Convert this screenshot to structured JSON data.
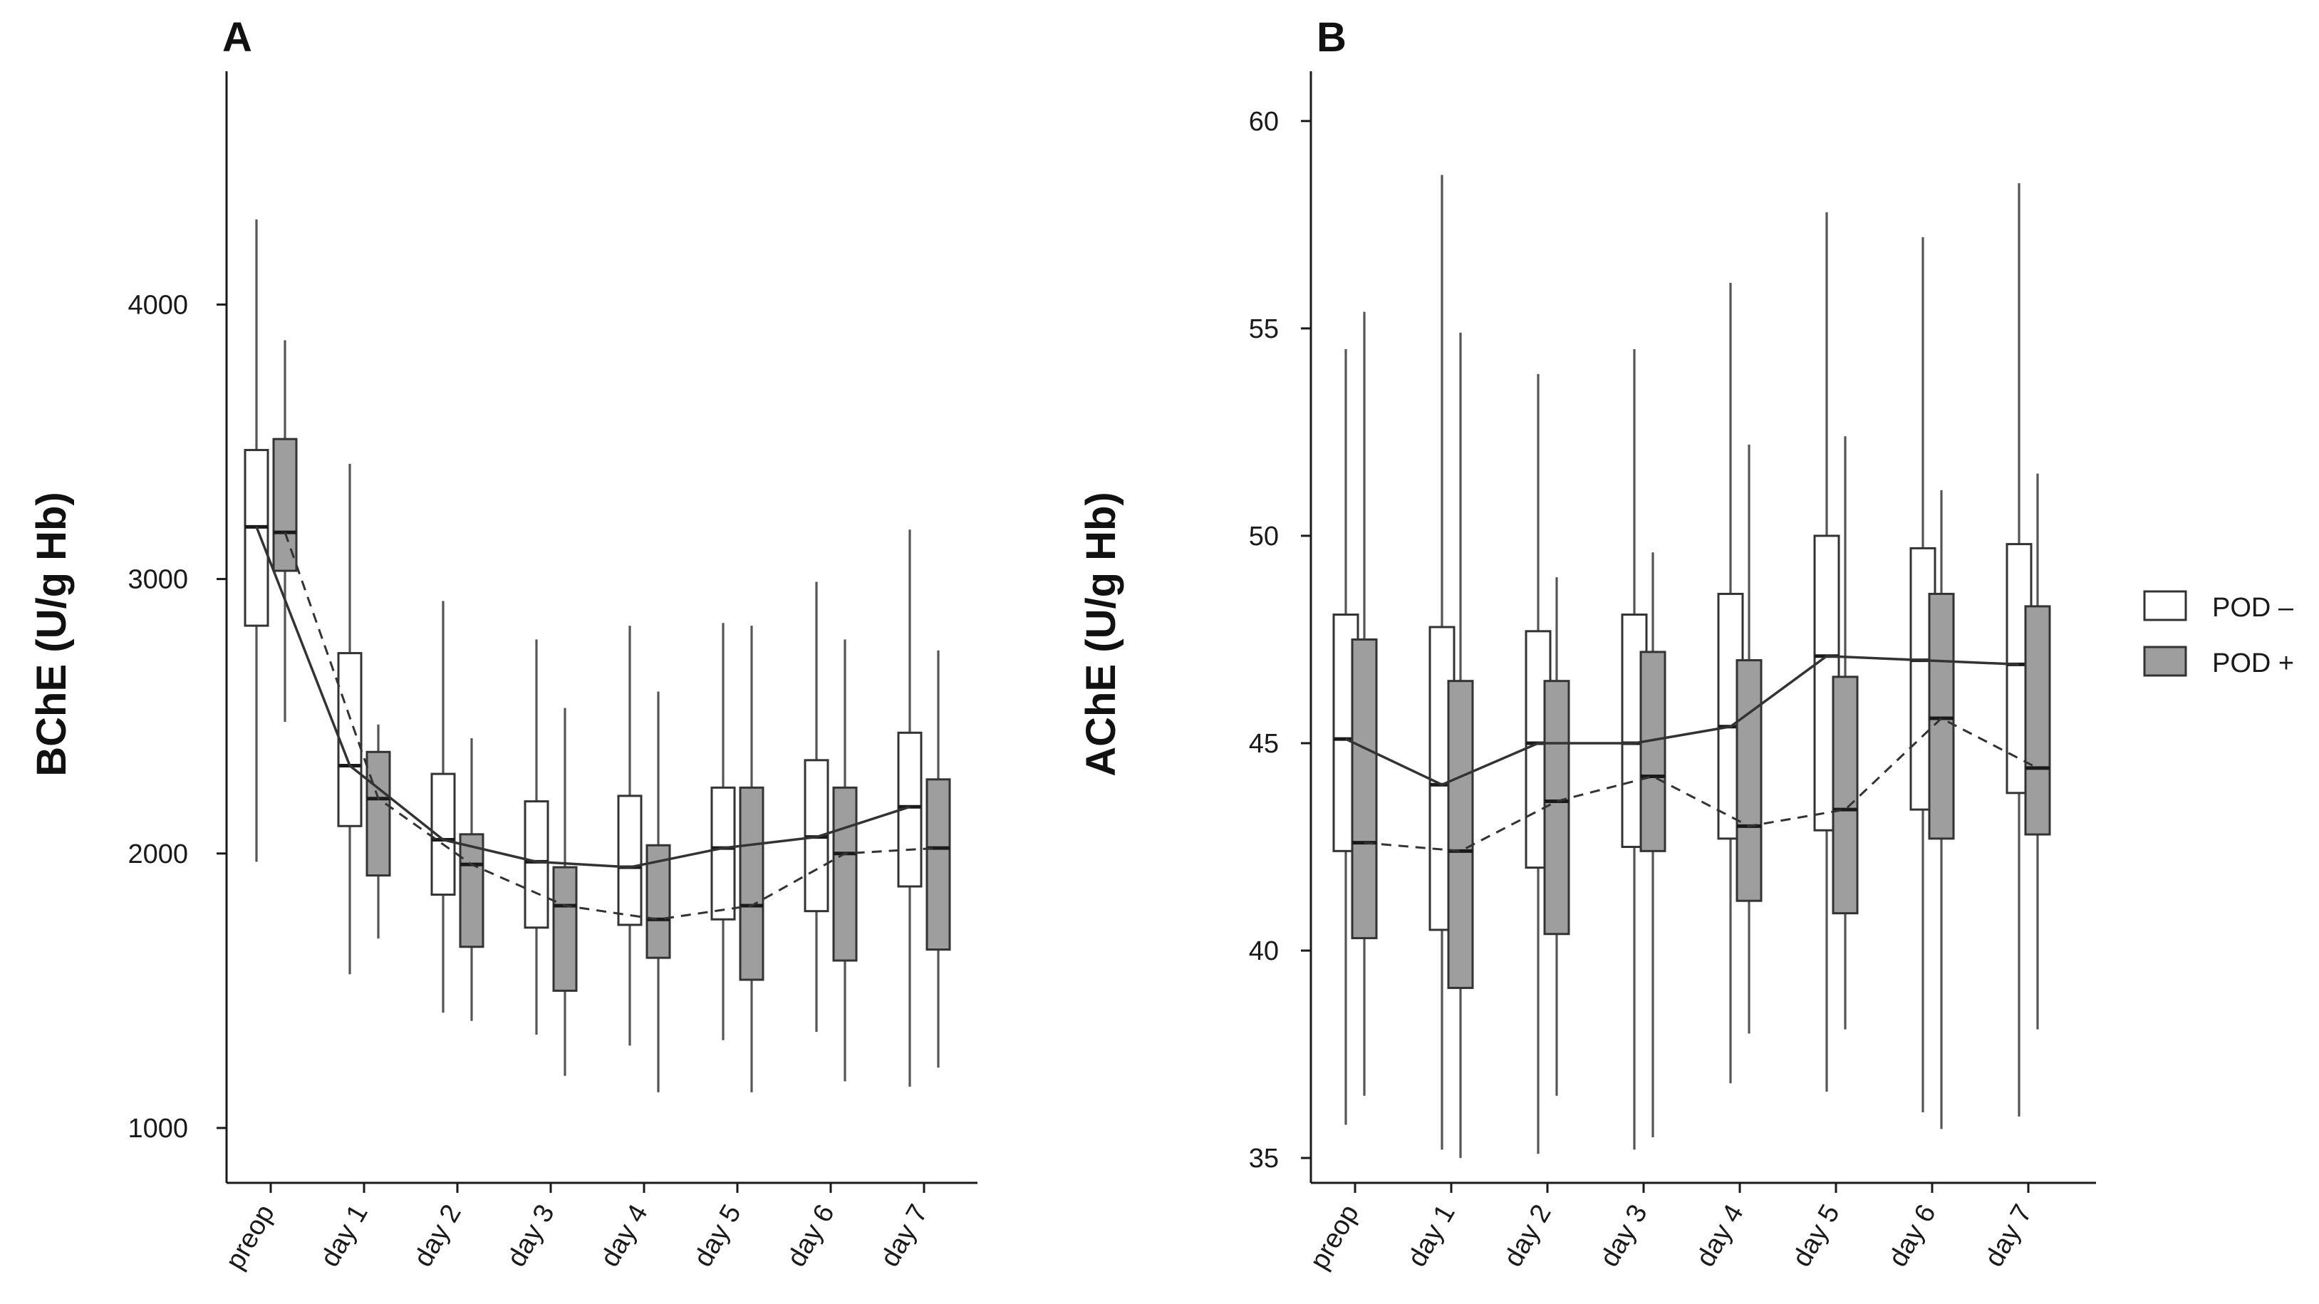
{
  "legend": [
    {
      "name": "POD –",
      "fill": "#ffffff"
    },
    {
      "name": "POD +",
      "fill": "#9e9e9e"
    }
  ],
  "chart_data": [
    {
      "panel": "A",
      "type": "box",
      "ylabel": "BChE (U/g Hb)",
      "xlabel": "",
      "categories": [
        "preop",
        "day 1",
        "day 2",
        "day 3",
        "day 4",
        "day 5",
        "day 6",
        "day 7"
      ],
      "ylim": [
        800,
        4850
      ],
      "yticks": [
        1000,
        2000,
        3000,
        4000
      ],
      "series": [
        {
          "name": "POD –",
          "line": "solid",
          "boxes": [
            {
              "min": 1970,
              "q1": 2830,
              "median": 3190,
              "q3": 3470,
              "max": 4310
            },
            {
              "min": 1560,
              "q1": 2100,
              "median": 2320,
              "q3": 2730,
              "max": 3420
            },
            {
              "min": 1420,
              "q1": 1850,
              "median": 2050,
              "q3": 2290,
              "max": 2920
            },
            {
              "min": 1340,
              "q1": 1730,
              "median": 1970,
              "q3": 2190,
              "max": 2780
            },
            {
              "min": 1300,
              "q1": 1740,
              "median": 1950,
              "q3": 2210,
              "max": 2830
            },
            {
              "min": 1320,
              "q1": 1760,
              "median": 2020,
              "q3": 2240,
              "max": 2840
            },
            {
              "min": 1350,
              "q1": 1790,
              "median": 2060,
              "q3": 2340,
              "max": 2990
            },
            {
              "min": 1150,
              "q1": 1880,
              "median": 2170,
              "q3": 2440,
              "max": 3180
            }
          ]
        },
        {
          "name": "POD +",
          "line": "dashed",
          "boxes": [
            {
              "min": 2480,
              "q1": 3030,
              "median": 3170,
              "q3": 3510,
              "max": 3870
            },
            {
              "min": 1690,
              "q1": 1920,
              "median": 2200,
              "q3": 2370,
              "max": 2470
            },
            {
              "min": 1390,
              "q1": 1660,
              "median": 1960,
              "q3": 2070,
              "max": 2420
            },
            {
              "min": 1190,
              "q1": 1500,
              "median": 1810,
              "q3": 1950,
              "max": 2530
            },
            {
              "min": 1130,
              "q1": 1620,
              "median": 1760,
              "q3": 2030,
              "max": 2590
            },
            {
              "min": 1130,
              "q1": 1540,
              "median": 1810,
              "q3": 2240,
              "max": 2830
            },
            {
              "min": 1170,
              "q1": 1610,
              "median": 2000,
              "q3": 2240,
              "max": 2780
            },
            {
              "min": 1220,
              "q1": 1650,
              "median": 2020,
              "q3": 2270,
              "max": 2740
            }
          ]
        }
      ]
    },
    {
      "panel": "B",
      "type": "box",
      "ylabel": "AChE (U/g Hb)",
      "xlabel": "",
      "categories": [
        "preop",
        "day 1",
        "day 2",
        "day 3",
        "day 4",
        "day 5",
        "day 6",
        "day 7"
      ],
      "ylim": [
        34.4,
        61.2
      ],
      "yticks": [
        35,
        40,
        45,
        50,
        55,
        60
      ],
      "series": [
        {
          "name": "POD –",
          "line": "solid",
          "boxes": [
            {
              "min": 35.8,
              "q1": 42.4,
              "median": 45.1,
              "q3": 48.1,
              "max": 54.5
            },
            {
              "min": 35.2,
              "q1": 40.5,
              "median": 44.0,
              "q3": 47.8,
              "max": 58.7
            },
            {
              "min": 35.1,
              "q1": 42.0,
              "median": 45.0,
              "q3": 47.7,
              "max": 53.9
            },
            {
              "min": 35.2,
              "q1": 42.5,
              "median": 45.0,
              "q3": 48.1,
              "max": 54.5
            },
            {
              "min": 36.8,
              "q1": 42.7,
              "median": 45.4,
              "q3": 48.6,
              "max": 56.1
            },
            {
              "min": 36.6,
              "q1": 42.9,
              "median": 47.1,
              "q3": 50.0,
              "max": 57.8
            },
            {
              "min": 36.1,
              "q1": 43.4,
              "median": 47.0,
              "q3": 49.7,
              "max": 57.2
            },
            {
              "min": 36.0,
              "q1": 43.8,
              "median": 46.9,
              "q3": 49.8,
              "max": 58.5
            }
          ]
        },
        {
          "name": "POD +",
          "line": "dashed",
          "boxes": [
            {
              "min": 36.5,
              "q1": 40.3,
              "median": 42.6,
              "q3": 47.5,
              "max": 55.4
            },
            {
              "min": 35.0,
              "q1": 39.1,
              "median": 42.4,
              "q3": 46.5,
              "max": 54.9
            },
            {
              "min": 36.5,
              "q1": 40.4,
              "median": 43.6,
              "q3": 46.5,
              "max": 49.0
            },
            {
              "min": 35.5,
              "q1": 42.4,
              "median": 44.2,
              "q3": 47.2,
              "max": 49.6
            },
            {
              "min": 38.0,
              "q1": 41.2,
              "median": 43.0,
              "q3": 47.0,
              "max": 52.2
            },
            {
              "min": 38.1,
              "q1": 40.9,
              "median": 43.4,
              "q3": 46.6,
              "max": 52.4
            },
            {
              "min": 35.7,
              "q1": 42.7,
              "median": 45.6,
              "q3": 48.6,
              "max": 51.1
            },
            {
              "min": 38.1,
              "q1": 42.8,
              "median": 44.4,
              "q3": 48.3,
              "max": 51.5
            }
          ]
        }
      ]
    }
  ]
}
